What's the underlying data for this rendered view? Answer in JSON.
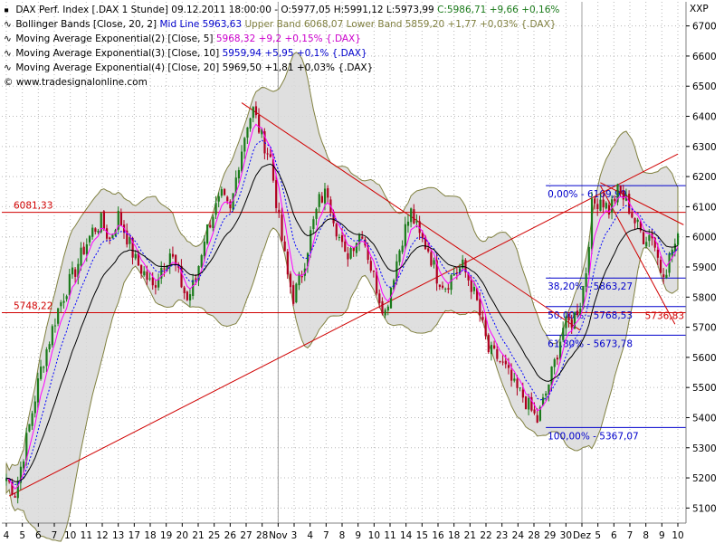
{
  "legend": {
    "title_line": {
      "name": "DAX Perf. Index [.DAX  1 Stunde] 09.12.2011 18:00:00 - O:5977,05 H:5991,12 L:5973,99",
      "close": "C:5986,71 +9,66 +0,16%"
    },
    "bollinger": {
      "name": "Bollinger Bands [Close, 20, 2]",
      "mid": "Mid Line 5963,63",
      "upper": "Upper Band 6068,07",
      "lower": "Lower Band 5859,20 +1,77 +0,03% {.DAX}"
    },
    "ema2": {
      "name": "Moving Average Exponential(2) [Close, 5]",
      "value": "5968,32 +9,2 +0,15% {.DAX}"
    },
    "ema3": {
      "name": "Moving Average Exponential(3) [Close, 10]",
      "value": "5959,94 +5,95 +0,1% {.DAX}"
    },
    "ema4": {
      "name": "Moving Average Exponential(4) [Close, 20]",
      "value": "5969,50 +1,81 +0,03% {.DAX}"
    },
    "copyright": "© www.tradesignalonline.com"
  },
  "colors": {
    "candle_up": "#1a7a1a",
    "candle_down": "#b00020",
    "band_fill": "#d9d9d9",
    "band_edge": "#808040",
    "ema_fast": "#ff00ff",
    "ema_mid": "#0000ff",
    "ema_slow": "#000000",
    "level": "#d00000",
    "fib": "#0000cc"
  },
  "chart_data": {
    "type": "candlestick",
    "symbol_label": "XXP",
    "ylim": [
      5050,
      6780
    ],
    "y_ticks": [
      5100,
      5200,
      5300,
      5400,
      5500,
      5600,
      5700,
      5800,
      5900,
      6000,
      6100,
      6200,
      6300,
      6400,
      6500,
      6600,
      6700
    ],
    "x_ticks": [
      "4",
      "5",
      "6",
      "7",
      "10",
      "11",
      "12",
      "13",
      "17",
      "18",
      "19",
      "20",
      "21",
      "25",
      "26",
      "27",
      "28",
      "Nov",
      "3",
      "4",
      "7",
      "8",
      "9",
      "10",
      "11",
      "14",
      "15",
      "16",
      "18",
      "21",
      "22",
      "23",
      "24",
      "28",
      "29",
      "30",
      "Dez",
      "5",
      "6",
      "7",
      "8",
      "9",
      "10"
    ],
    "close_path": [
      [
        0,
        5200
      ],
      [
        3,
        5150
      ],
      [
        6,
        5280
      ],
      [
        9,
        5420
      ],
      [
        12,
        5560
      ],
      [
        15,
        5660
      ],
      [
        18,
        5760
      ],
      [
        21,
        5830
      ],
      [
        24,
        5890
      ],
      [
        27,
        5960
      ],
      [
        30,
        6020
      ],
      [
        33,
        6050
      ],
      [
        36,
        5990
      ],
      [
        39,
        6070
      ],
      [
        42,
        6000
      ],
      [
        45,
        5920
      ],
      [
        48,
        5880
      ],
      [
        51,
        5830
      ],
      [
        54,
        5900
      ],
      [
        57,
        5950
      ],
      [
        60,
        5870
      ],
      [
        63,
        5790
      ],
      [
        66,
        5860
      ],
      [
        69,
        6000
      ],
      [
        72,
        6080
      ],
      [
        75,
        6130
      ],
      [
        78,
        6080
      ],
      [
        81,
        6250
      ],
      [
        84,
        6380
      ],
      [
        86,
        6420
      ],
      [
        89,
        6330
      ],
      [
        92,
        6260
      ],
      [
        95,
        6050
      ],
      [
        98,
        5870
      ],
      [
        100,
        5800
      ],
      [
        103,
        5880
      ],
      [
        106,
        6010
      ],
      [
        109,
        6120
      ],
      [
        112,
        6150
      ],
      [
        115,
        6030
      ],
      [
        118,
        5930
      ],
      [
        121,
        5980
      ],
      [
        124,
        6020
      ],
      [
        127,
        5900
      ],
      [
        130,
        5800
      ],
      [
        132,
        5750
      ],
      [
        135,
        5880
      ],
      [
        138,
        6000
      ],
      [
        141,
        6080
      ],
      [
        144,
        6000
      ],
      [
        147,
        5960
      ],
      [
        150,
        5870
      ],
      [
        153,
        5840
      ],
      [
        156,
        5880
      ],
      [
        159,
        5900
      ],
      [
        162,
        5840
      ],
      [
        164,
        5780
      ],
      [
        166,
        5700
      ],
      [
        168,
        5620
      ],
      [
        171,
        5600
      ],
      [
        174,
        5560
      ],
      [
        177,
        5500
      ],
      [
        180,
        5470
      ],
      [
        183,
        5420
      ],
      [
        185,
        5390
      ],
      [
        188,
        5480
      ],
      [
        191,
        5580
      ],
      [
        194,
        5700
      ],
      [
        197,
        5720
      ],
      [
        200,
        5780
      ],
      [
        202,
        5890
      ],
      [
        204,
        6100
      ],
      [
        207,
        6130
      ],
      [
        210,
        6090
      ],
      [
        213,
        6150
      ],
      [
        216,
        6120
      ],
      [
        219,
        6050
      ],
      [
        222,
        6000
      ],
      [
        225,
        6010
      ],
      [
        228,
        5890
      ],
      [
        230,
        5900
      ],
      [
        232,
        5960
      ],
      [
        234,
        5987
      ]
    ],
    "series": [
      {
        "name": "Bollinger Bands [Close, 20, 2]",
        "kind": "band"
      },
      {
        "name": "Moving Average Exponential(2) [Close, 5]",
        "kind": "ema",
        "period": 5
      },
      {
        "name": "Moving Average Exponential(3) [Close, 10]",
        "kind": "ema",
        "period": 10
      },
      {
        "name": "Moving Average Exponential(4) [Close, 20]",
        "kind": "ema",
        "period": 20
      }
    ],
    "horizontal_levels": [
      {
        "label": "6081,33",
        "value": 6081.33
      },
      {
        "label": "5748,22",
        "value": 5748.22
      }
    ],
    "fibonacci": {
      "levels": [
        {
          "label": "0,00% - 6169,99",
          "value": 6169.99
        },
        {
          "label": "38,20% - 5863,27",
          "value": 5863.27
        },
        {
          "label": "50,00% - 5768,53",
          "value": 5768.53
        },
        {
          "label": "61,80% - 5673,78",
          "value": 5673.78
        },
        {
          "label": "100,00% - 5367,07",
          "value": 5367.07
        }
      ],
      "right_label": "5736,83",
      "right_value": 5736.83
    },
    "trendlines": [
      {
        "from": [
          82,
          6445
        ],
        "to": [
          200,
          5690
        ]
      },
      {
        "from": [
          1,
          5140
        ],
        "to": [
          234,
          6275
        ]
      },
      {
        "from": [
          207,
          6180
        ],
        "to": [
          236,
          6040
        ]
      },
      {
        "from": [
          207,
          6170
        ],
        "to": [
          233,
          5710
        ]
      }
    ]
  }
}
